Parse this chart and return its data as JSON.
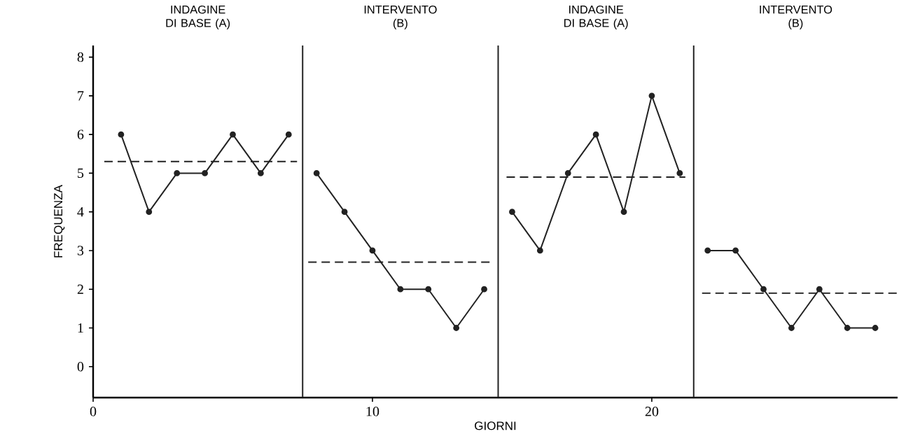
{
  "chart_data": {
    "type": "line",
    "xlabel": "GIORNI",
    "ylabel": "FREQUENZA",
    "xlim": [
      0,
      28.8
    ],
    "ylim": [
      -0.8,
      8.3
    ],
    "xticks": [
      0,
      10,
      20
    ],
    "yticks": [
      0,
      1,
      2,
      3,
      4,
      5,
      6,
      7,
      8
    ],
    "grid": false,
    "series": [
      {
        "color": "#222222",
        "marker": "circle",
        "line_style": "solid",
        "x": [
          1,
          2,
          3,
          4,
          5,
          6,
          7
        ],
        "values": [
          6,
          4,
          5,
          5,
          6,
          5,
          6
        ]
      },
      {
        "color": "#222222",
        "marker": "circle",
        "line_style": "solid",
        "x": [
          8,
          9,
          10,
          11,
          12,
          13,
          14
        ],
        "values": [
          5,
          4,
          3,
          2,
          2,
          1,
          2
        ]
      },
      {
        "color": "#222222",
        "marker": "circle",
        "line_style": "solid",
        "x": [
          15,
          16,
          17,
          18,
          19,
          20,
          21
        ],
        "values": [
          4,
          3,
          5,
          6,
          4,
          7,
          5
        ]
      },
      {
        "color": "#222222",
        "marker": "circle",
        "line_style": "solid",
        "x": [
          22,
          23,
          24,
          25,
          26,
          27,
          28
        ],
        "values": [
          3,
          3,
          2,
          1,
          2,
          1,
          1
        ]
      },
      {
        "color": "#222222",
        "marker": "none",
        "line_style": "dashed",
        "x": [
          0.4,
          7.3
        ],
        "values": [
          5.3,
          5.3
        ]
      },
      {
        "color": "#222222",
        "marker": "none",
        "line_style": "dashed",
        "x": [
          7.7,
          14.2
        ],
        "values": [
          2.7,
          2.7
        ]
      },
      {
        "color": "#222222",
        "marker": "none",
        "line_style": "dashed",
        "x": [
          14.8,
          21.2
        ],
        "values": [
          4.9,
          4.9
        ]
      },
      {
        "color": "#222222",
        "marker": "none",
        "line_style": "dashed",
        "x": [
          21.8,
          28.8
        ],
        "values": [
          1.9,
          1.9
        ]
      }
    ],
    "ref_lines": [
      {
        "axis": "x",
        "value": 7.5,
        "color": "#222222",
        "line_style": "solid"
      },
      {
        "axis": "x",
        "value": 14.5,
        "color": "#222222",
        "line_style": "solid"
      },
      {
        "axis": "x",
        "value": 21.5,
        "color": "#222222",
        "line_style": "solid"
      }
    ],
    "annotations": [
      "INDAGINE DI BASE (A)",
      "INTERVENTO (B)",
      "INDAGINE DI BASE (A)",
      "INTERVENTO (B)"
    ]
  }
}
